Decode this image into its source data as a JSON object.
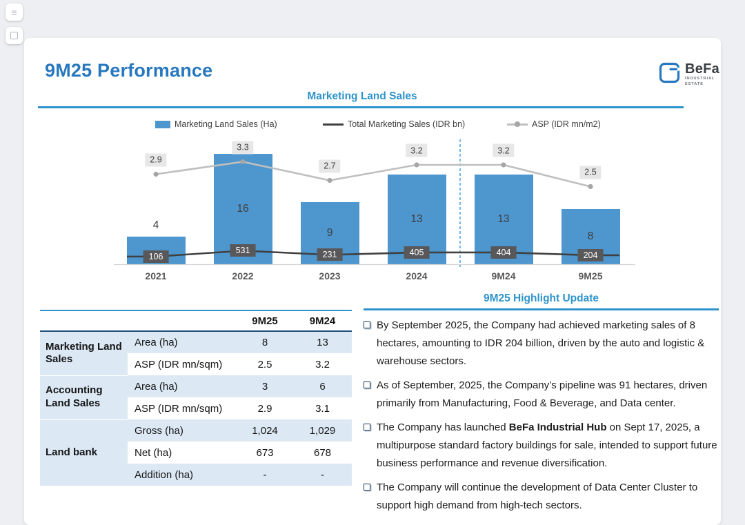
{
  "overlay": {
    "buttons": [
      {
        "icon": "menu-icon"
      },
      {
        "icon": "copy-icon"
      }
    ]
  },
  "header": {
    "title": "9M25 Performance",
    "logo": {
      "brand": "BeFa",
      "subtitle_line1": "INDUSTRIAL",
      "subtitle_line2": "ESTATE"
    }
  },
  "colors": {
    "accent_blue": "#2e93cc",
    "title_blue": "#2778be",
    "bar_blue": "#4d96ce",
    "table_band_blue": "#dce9f5",
    "total_line": "#404040",
    "asp_line": "#bfbfbf",
    "badge_dark": "#58585a",
    "header_rule_dark": "#1f4e79"
  },
  "chart": {
    "title": "Marketing Land Sales",
    "legend": [
      {
        "label": "Marketing Land Sales (Ha)",
        "swatch": "bar",
        "color": "#4d96ce"
      },
      {
        "label": "Total Marketing Sales (IDR bn)",
        "swatch": "line",
        "color": "#404040"
      },
      {
        "label": "ASP (IDR mn/m2)",
        "swatch": "line-marker",
        "color": "#bfbfbf"
      }
    ]
  },
  "chart_data": {
    "type": "bar",
    "title": "Marketing Land Sales",
    "categories": [
      "2021",
      "2022",
      "2023",
      "2024",
      "9M24",
      "9M25"
    ],
    "series": [
      {
        "name": "Marketing Land Sales (Ha)",
        "type": "bar",
        "values": [
          4,
          16,
          9,
          13,
          13,
          8
        ],
        "color": "#4d96ce"
      },
      {
        "name": "Total Marketing Sales (IDR bn)",
        "type": "line",
        "values": [
          106,
          531,
          231,
          405,
          404,
          204
        ],
        "color": "#404040",
        "label_style": "dark-box"
      },
      {
        "name": "ASP (IDR mn/m2)",
        "type": "line",
        "values": [
          2.9,
          3.3,
          2.7,
          3.2,
          3.2,
          2.5
        ],
        "color": "#bfbfbf",
        "label_style": "gray-box"
      }
    ],
    "separator_after_index": 3,
    "legend_position": "top",
    "grid": false
  },
  "table": {
    "value_headers": [
      "9M25",
      "9M24"
    ],
    "groups": [
      {
        "label": "Marketing Land Sales",
        "rows": [
          {
            "metric": "Area (ha)",
            "values": [
              "8",
              "13"
            ]
          },
          {
            "metric": "ASP (IDR mn/sqm)",
            "values": [
              "2.5",
              "3.2"
            ]
          }
        ]
      },
      {
        "label": "Accounting Land Sales",
        "rows": [
          {
            "metric": "Area (ha)",
            "values": [
              "3",
              "6"
            ]
          },
          {
            "metric": "ASP (IDR mn/sqm)",
            "values": [
              "2.9",
              "3.1"
            ]
          }
        ]
      },
      {
        "label": "Land bank",
        "rows": [
          {
            "metric": "Gross (ha)",
            "values": [
              "1,024",
              "1,029"
            ]
          },
          {
            "metric": "Net (ha)",
            "values": [
              "673",
              "678"
            ]
          },
          {
            "metric": "Addition (ha)",
            "values": [
              "-",
              "-"
            ]
          }
        ]
      }
    ]
  },
  "highlights": {
    "title": "9M25 Highlight Update",
    "bullets": [
      [
        {
          "text": "By September 2025, the Company had achieved marketing sales of 8 hectares, amounting to IDR 204 billion, driven by the auto and logistic & warehouse sectors.",
          "bold": false
        }
      ],
      [
        {
          "text": "As of September, 2025, the Company’s pipeline was 91 hectares, driven primarily from Manufacturing, Food & Beverage, and Data center.",
          "bold": false
        }
      ],
      [
        {
          "text": "The Company has launched ",
          "bold": false
        },
        {
          "text": "BeFa Industrial Hub",
          "bold": true
        },
        {
          "text": " on Sept 17, 2025, a multipurpose standard factory buildings for sale, intended to support future business performance and revenue diversification.",
          "bold": false
        }
      ],
      [
        {
          "text": "The Company will continue the development of Data Center Cluster to support high demand from high-tech sectors.",
          "bold": false
        }
      ]
    ]
  }
}
